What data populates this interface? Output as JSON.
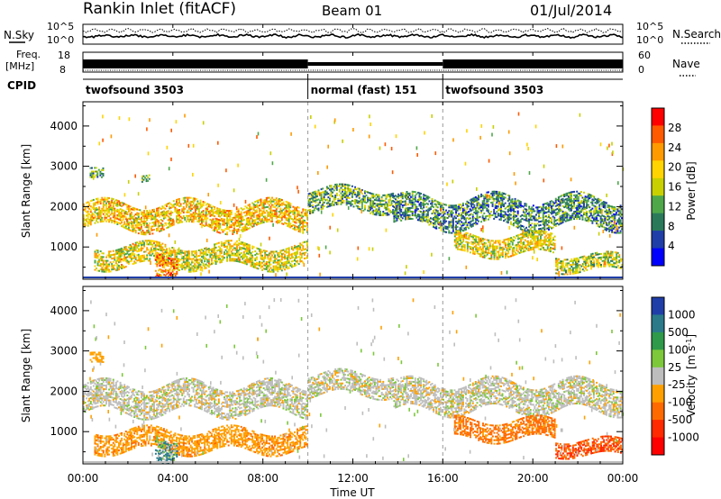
{
  "header": {
    "station": "Rankin Inlet (fitACF)",
    "beam": "Beam 01",
    "date": "01/Jul/2014"
  },
  "strip_labels": {
    "nsky": "N.Sky",
    "nsearch": "N.Search",
    "freq": "Freq.",
    "freq_unit": "[MHz]",
    "nave": "Nave",
    "cpid": "CPID",
    "noise_ticks": [
      "10^5",
      "10^0"
    ],
    "freq_ticks": [
      "18",
      "8"
    ],
    "nave_ticks": [
      "60",
      "0"
    ]
  },
  "cpid_segments": [
    {
      "label": "twofsound 3503",
      "start_h": 0,
      "end_h": 10
    },
    {
      "label": "normal (fast) 151",
      "start_h": 10,
      "end_h": 16
    },
    {
      "label": "twofsound 3503",
      "start_h": 16,
      "end_h": 24
    }
  ],
  "x_axis": {
    "label": "Time UT",
    "ticks": [
      "00:00",
      "04:00",
      "08:00",
      "12:00",
      "16:00",
      "20:00",
      "00:00"
    ],
    "range_h": [
      0,
      24
    ]
  },
  "colorbars": {
    "power": {
      "label": "Power [dB]",
      "ticks": [
        "28",
        "24",
        "20",
        "16",
        "12",
        "8",
        "4"
      ],
      "colors": [
        "#ff0000",
        "#ff5a00",
        "#ff9a00",
        "#ffd400",
        "#c8d000",
        "#4ea84a",
        "#2a7a5a",
        "#1f3ea8",
        "#0000ff"
      ]
    },
    "velocity": {
      "label_main": "Velocity",
      "label_unit": "[m s",
      "label_exp": "-1",
      "label_close": "]",
      "ticks": [
        "1000",
        "500",
        "100",
        "25",
        "-25",
        "-100",
        "-500",
        "-1000"
      ],
      "colors": [
        "#1f3ea8",
        "#2a7a8a",
        "#2e9a4a",
        "#7cc83a",
        "#bdbdbd",
        "#ffa000",
        "#ff6a00",
        "#ff2a00",
        "#ff0000"
      ]
    }
  },
  "chart_data": [
    {
      "type": "heatmap",
      "name_hint": "power",
      "ylabel": "Slant Range [km]",
      "xlabel": "",
      "yticks": [
        1000,
        2000,
        3000,
        4000
      ],
      "ylim": [
        200,
        4600
      ],
      "xlim": [
        0,
        24
      ],
      "regions": [
        {
          "t0": 0.0,
          "t1": 10.0,
          "r0": 1450,
          "r1": 2100,
          "level": 20
        },
        {
          "t0": 10.0,
          "t1": 13.8,
          "r0": 1900,
          "r1": 2450,
          "level": 12
        },
        {
          "t0": 13.8,
          "t1": 24.0,
          "r0": 1500,
          "r1": 2200,
          "level": 10
        },
        {
          "t0": 0.5,
          "t1": 10.0,
          "r0": 500,
          "r1": 1050,
          "level": 18
        },
        {
          "t0": 3.2,
          "t1": 4.2,
          "r0": 250,
          "r1": 900,
          "level": 24
        },
        {
          "t0": 16.5,
          "t1": 21.0,
          "r0": 800,
          "r1": 1300,
          "level": 18
        },
        {
          "t0": 21.0,
          "t1": 24.0,
          "r0": 400,
          "r1": 800,
          "level": 16
        },
        {
          "t0": 0.3,
          "t1": 0.9,
          "r0": 2650,
          "r1": 2900,
          "level": 12
        },
        {
          "t0": 2.6,
          "t1": 3.0,
          "r0": 2600,
          "r1": 2800,
          "level": 14
        }
      ],
      "description_range": "scatter band 1400-2500 km, E-region echoes 300-1100 km"
    },
    {
      "type": "heatmap",
      "name_hint": "velocity",
      "ylabel": "Slant Range [km]",
      "xlabel": "Time UT",
      "yticks": [
        1000,
        2000,
        3000,
        4000
      ],
      "ylim": [
        200,
        4600
      ],
      "xlim": [
        0,
        24
      ],
      "regions": [
        {
          "t0": 0.0,
          "t1": 10.0,
          "r0": 1450,
          "r1": 2150,
          "level": 0
        },
        {
          "t0": 10.0,
          "t1": 13.8,
          "r0": 1900,
          "r1": 2450,
          "level": 0
        },
        {
          "t0": 13.8,
          "t1": 24.0,
          "r0": 1500,
          "r1": 2200,
          "level": 0
        },
        {
          "t0": 0.5,
          "t1": 10.0,
          "r0": 500,
          "r1": 1050,
          "level": -200
        },
        {
          "t0": 3.2,
          "t1": 4.2,
          "r0": 250,
          "r1": 900,
          "level": 120
        },
        {
          "t0": 16.5,
          "t1": 21.0,
          "r0": 800,
          "r1": 1300,
          "level": -300
        },
        {
          "t0": 21.0,
          "t1": 24.0,
          "r0": 400,
          "r1": 800,
          "level": -500
        },
        {
          "t0": 0.3,
          "t1": 0.9,
          "r0": 2650,
          "r1": 2900,
          "level": -150
        }
      ]
    }
  ]
}
